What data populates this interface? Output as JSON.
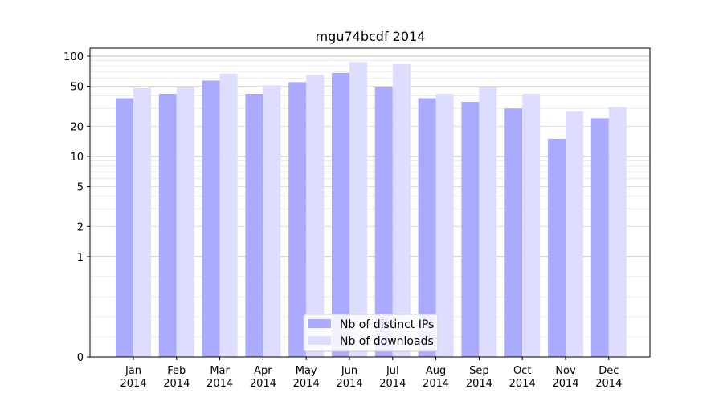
{
  "chart_data": {
    "type": "bar",
    "title": "mgu74bcdf 2014",
    "categories": [
      "Jan\n2014",
      "Feb\n2014",
      "Mar\n2014",
      "Apr\n2014",
      "May\n2014",
      "Jun\n2014",
      "Jul\n2014",
      "Aug\n2014",
      "Sep\n2014",
      "Oct\n2014",
      "Nov\n2014",
      "Dec\n2014"
    ],
    "series": [
      {
        "name": "Nb of distinct IPs",
        "color": "#aaaaff",
        "values": [
          38,
          42,
          57,
          42,
          55,
          68,
          49,
          38,
          35,
          30,
          15,
          24
        ]
      },
      {
        "name": "Nb of downloads",
        "color": "#ddddff",
        "values": [
          48,
          49,
          67,
          51,
          65,
          87,
          83,
          42,
          49,
          42,
          28,
          31
        ]
      }
    ],
    "yscale": "symlog",
    "yticks": [
      0,
      1,
      2,
      5,
      10,
      20,
      50,
      100
    ],
    "ylim": [
      0,
      120
    ],
    "xlabel": "",
    "ylabel": "",
    "legend": "bottom-center",
    "grid": true
  }
}
